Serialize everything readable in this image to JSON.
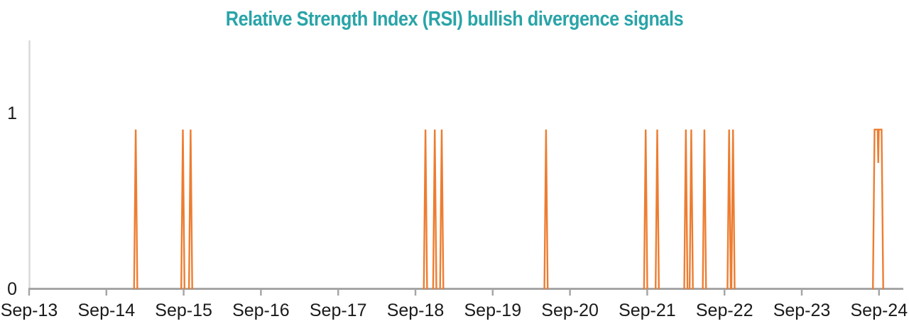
{
  "chart_data": {
    "type": "line",
    "title": "Relative Strength Index (RSI) bullish divergence signals",
    "title_color": "#29a4a8",
    "series_color": "#ed7d31",
    "axis_color": "#a6a6a6",
    "y_axis_line_color": "#d9d9d9",
    "tick_label_color": "#1a1a1a",
    "grid": "off",
    "legend": "none",
    "x_axis": {
      "tick_labels": [
        "Sep-13",
        "Sep-14",
        "Sep-15",
        "Sep-16",
        "Sep-17",
        "Sep-18",
        "Sep-19",
        "Sep-20",
        "Sep-21",
        "Sep-22",
        "Sep-23",
        "Sep-24"
      ],
      "tick_interval": "1 year"
    },
    "y_axis": {
      "tick_labels": [
        "0",
        "1"
      ],
      "tick_values": [
        0,
        1
      ],
      "range": [
        0,
        1.41
      ]
    },
    "signal_low_value": 0,
    "signal_high_value": 0.9,
    "spikes": [
      {
        "x_years_after_sep13": 1.38,
        "approx_date": "Jan-15"
      },
      {
        "x_years_after_sep13": 1.99,
        "approx_date": "Sep-15"
      },
      {
        "x_years_after_sep13": 2.09,
        "approx_date": "Oct-15"
      },
      {
        "x_years_after_sep13": 5.13,
        "approx_date": "Oct-18"
      },
      {
        "x_years_after_sep13": 5.25,
        "approx_date": "Dec-18"
      },
      {
        "x_years_after_sep13": 5.34,
        "approx_date": "Jan-19"
      },
      {
        "x_years_after_sep13": 6.69,
        "approx_date": "May-20"
      },
      {
        "x_years_after_sep13": 7.98,
        "approx_date": "Aug-21"
      },
      {
        "x_years_after_sep13": 8.13,
        "approx_date": "Oct-21"
      },
      {
        "x_years_after_sep13": 8.5,
        "approx_date": "Mar-22"
      },
      {
        "x_years_after_sep13": 8.57,
        "approx_date": "Apr-22"
      },
      {
        "x_years_after_sep13": 8.74,
        "approx_date": "Jun-22"
      },
      {
        "x_years_after_sep13": 9.06,
        "approx_date": "Oct-22"
      },
      {
        "x_years_after_sep13": 9.11,
        "approx_date": "Nov-22"
      }
    ],
    "plateau": {
      "start_years_after_sep13": 10.935,
      "notch_years_after_sep13": 10.99,
      "end_years_after_sep13": 11.04,
      "approx_dates": "Aug-24 to Sep-24"
    }
  }
}
